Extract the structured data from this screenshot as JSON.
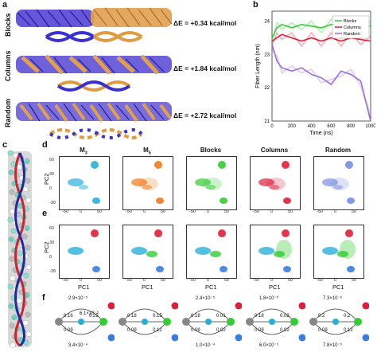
{
  "panels": {
    "a": "a",
    "b": "b",
    "c": "c",
    "d": "d",
    "e": "e",
    "f": "f"
  },
  "panel_a": {
    "rows": [
      {
        "label": "Blocks",
        "energy": "ΔE = +0.34 kcal/mol"
      },
      {
        "label": "Columns",
        "energy": "ΔE = +1.84 kcal/mol"
      },
      {
        "label": "Random",
        "energy": "ΔE = +2.72 kcal/mol"
      }
    ]
  },
  "panel_b": {
    "xlabel": "Time (ns)",
    "ylabel": "Fiber Length (nm)",
    "xticks": [
      "0",
      "200",
      "400",
      "600",
      "800",
      "1000"
    ],
    "yticks": [
      "21",
      "22",
      "23",
      "24"
    ],
    "legend": [
      "Blocks",
      "Columns",
      "Random"
    ],
    "colors": {
      "Blocks": "#33cc33",
      "Columns": "#dd1f3a",
      "Random": "#9a6ce0"
    }
  },
  "chart_data": {
    "type": "line",
    "xlabel": "Time (ns)",
    "ylabel": "Fiber Length (nm)",
    "xlim": [
      0,
      1000
    ],
    "ylim": [
      21,
      24.3
    ],
    "legend_position": "top-right",
    "series": [
      {
        "name": "Blocks",
        "x": [
          0,
          50,
          100,
          200,
          300,
          400,
          500,
          600,
          700,
          800,
          900,
          1000
        ],
        "values": [
          23.5,
          23.8,
          23.9,
          23.8,
          23.9,
          23.85,
          23.8,
          23.9,
          23.85,
          23.8,
          23.85,
          23.85
        ]
      },
      {
        "name": "Columns",
        "x": [
          0,
          50,
          100,
          200,
          300,
          400,
          500,
          600,
          700,
          800,
          900,
          1000
        ],
        "values": [
          23.4,
          23.5,
          23.6,
          23.5,
          23.4,
          23.5,
          23.4,
          23.5,
          23.4,
          23.5,
          23.45,
          23.4
        ]
      },
      {
        "name": "Random",
        "x": [
          0,
          50,
          100,
          200,
          300,
          400,
          500,
          600,
          700,
          800,
          900,
          1000
        ],
        "values": [
          23.3,
          22.8,
          22.6,
          22.5,
          22.6,
          22.4,
          22.3,
          22.1,
          22.5,
          22.4,
          22.2,
          21.0
        ]
      }
    ]
  },
  "panel_d": {
    "titles": [
      "M",
      "M",
      "Blocks",
      "Columns",
      "Random"
    ],
    "subscripts": [
      "3",
      "5",
      "",
      "",
      ""
    ],
    "ylabel": "PC2",
    "yticks": [
      "60",
      "30",
      "0",
      "-30"
    ],
    "xticks": [
      "-50",
      "0",
      "50"
    ]
  },
  "panel_e": {
    "ylabel": "PC2",
    "xlabel": "PC1",
    "yticks": [
      "60",
      "30",
      "0",
      "-30"
    ],
    "xticks": [
      "-50",
      "0",
      "50"
    ]
  },
  "panel_f": {
    "networks": [
      {
        "top": "2.9×10⁻⁵",
        "mid": "6.1×10⁻⁵",
        "left1": "0.16",
        "left2": "0.09",
        "right": "0.25",
        "bottom": "3.4×10⁻⁴"
      },
      {
        "top": "",
        "mid": "",
        "left1": "0.18",
        "left2": "0.09",
        "right1": "0.15",
        "right2": "0.12",
        "bottom": ""
      },
      {
        "top": "2.4×10⁻⁵",
        "mid": "",
        "left1": "0.18",
        "left2": "0.09",
        "right1": "0.01",
        "right2": "0.02",
        "bottom": "1.0×10⁻⁴"
      },
      {
        "top": "1.8×10⁻⁵",
        "mid": "",
        "left1": "0.18",
        "left2": "0.09",
        "right1": "0.02",
        "right2": "0.02",
        "bottom": "6.0×10⁻⁵"
      },
      {
        "top": "7.3×10⁻⁶",
        "mid": "",
        "left1": "0.2",
        "left2": "0.09",
        "right1": "0.2",
        "right2": "0.12",
        "bottom": "7.8×10⁻⁵"
      }
    ],
    "state_colors": [
      "#888888",
      "#2ab0d8",
      "#33cc33",
      "#dd1f3a",
      "#3a7de0"
    ]
  }
}
